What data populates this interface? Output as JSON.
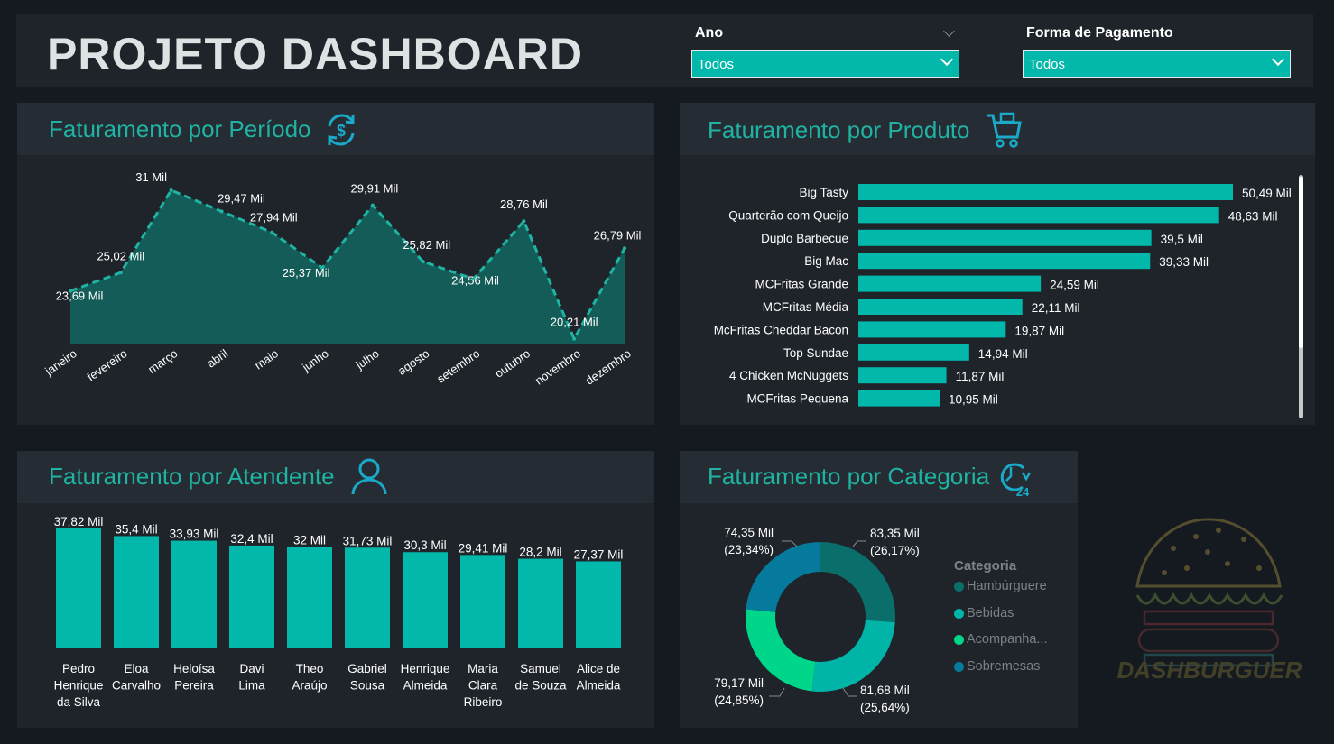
{
  "header": {
    "title": "PROJETO DASHBOARD",
    "filters": [
      {
        "label": "Ano",
        "value": "Todos"
      },
      {
        "label": "Forma de Pagamento",
        "value": "Todos"
      }
    ]
  },
  "colors": {
    "accent": "#01b8aa",
    "title": "#1fb3a3",
    "panel": "#1f242b"
  },
  "periodo": {
    "title": "Faturamento por Período",
    "icon": "dollar-refresh-icon"
  },
  "produto": {
    "title": "Faturamento por Produto",
    "icon": "shopping-cart-icon"
  },
  "atendente": {
    "title": "Faturamento por Atendente",
    "icon": "user-icon"
  },
  "categoria": {
    "title": "Faturamento por Categoria",
    "icon": "clock-24-icon",
    "legend_title": "Categoria"
  },
  "logo": {
    "text": "DASHBURGUER"
  },
  "chart_data": [
    {
      "type": "area",
      "categories": [
        "janeiro",
        "fevereiro",
        "março",
        "abril",
        "maio",
        "junho",
        "julho",
        "agosto",
        "setembro",
        "outubro",
        "novembro",
        "dezembro"
      ],
      "values": [
        23.69,
        25.02,
        31,
        29.47,
        27.94,
        25.37,
        29.91,
        25.82,
        24.56,
        28.76,
        20.21,
        26.79
      ],
      "labels": [
        "23,69 Mil",
        "25,02 Mil",
        "31 Mil",
        "29,47 Mil",
        "27,94 Mil",
        "25,37 Mil",
        "29,91 Mil",
        "25,82 Mil",
        "24,56 Mil",
        "28,76 Mil",
        "20,21 Mil",
        "26,79 Mil"
      ],
      "unit": "Mil",
      "grid": false
    },
    {
      "type": "bar",
      "orientation": "horizontal",
      "categories": [
        "Big Tasty",
        "Quarterão com Queijo",
        "Duplo Barbecue",
        "Big Mac",
        "MCFritas Grande",
        "MCFritas Média",
        "McFritas Cheddar Bacon",
        "Top Sundae",
        "4 Chicken McNuggets",
        "MCFritas Pequena"
      ],
      "values": [
        50.49,
        48.63,
        39.5,
        39.33,
        24.59,
        22.11,
        19.87,
        14.94,
        11.87,
        10.95
      ],
      "labels": [
        "50,49 Mil",
        "48,63 Mil",
        "39,5 Mil",
        "39,33 Mil",
        "24,59 Mil",
        "22,11 Mil",
        "19,87 Mil",
        "14,94 Mil",
        "11,87 Mil",
        "10,95 Mil"
      ]
    },
    {
      "type": "bar",
      "categories": [
        [
          "Pedro",
          "Henrique",
          "da Silva"
        ],
        [
          "Eloa",
          "Carvalho"
        ],
        [
          "Heloísa",
          "Pereira"
        ],
        [
          "Davi",
          "Lima"
        ],
        [
          "Theo",
          "Araújo"
        ],
        [
          "Gabriel",
          "Sousa"
        ],
        [
          "Henrique",
          "Almeida"
        ],
        [
          "Maria",
          "Clara",
          "Ribeiro"
        ],
        [
          "Samuel",
          "de Souza"
        ],
        [
          "Alice de",
          "Almeida"
        ]
      ],
      "values": [
        37.82,
        35.4,
        33.93,
        32.4,
        32,
        31.73,
        30.3,
        29.41,
        28.2,
        27.37
      ],
      "labels": [
        "37,82 Mil",
        "35,4 Mil",
        "33,93 Mil",
        "32,4 Mil",
        "32 Mil",
        "31,73 Mil",
        "30,3 Mil",
        "29,41 Mil",
        "28,2 Mil",
        "27,37 Mil"
      ]
    },
    {
      "type": "pie",
      "donut": true,
      "series": [
        {
          "name": "Hambúrguere",
          "legend": "Hambúrguere",
          "value": 83.35,
          "label": "83,35 Mil",
          "pct": "(26,17%)",
          "color": "#0a6f6a"
        },
        {
          "name": "Bebidas",
          "legend": "Bebidas",
          "value": 81.68,
          "label": "81,68 Mil",
          "pct": "(25,64%)",
          "color": "#00b5a8"
        },
        {
          "name": "Acompanhamentos",
          "legend": "Acompanha...",
          "value": 79.17,
          "label": "79,17 Mil",
          "pct": "(24,85%)",
          "color": "#00d68a"
        },
        {
          "name": "Sobremesas",
          "legend": "Sobremesas",
          "value": 74.35,
          "label": "74,35 Mil",
          "pct": "(23,34%)",
          "color": "#057a9c"
        }
      ],
      "legend_position": "right"
    }
  ]
}
